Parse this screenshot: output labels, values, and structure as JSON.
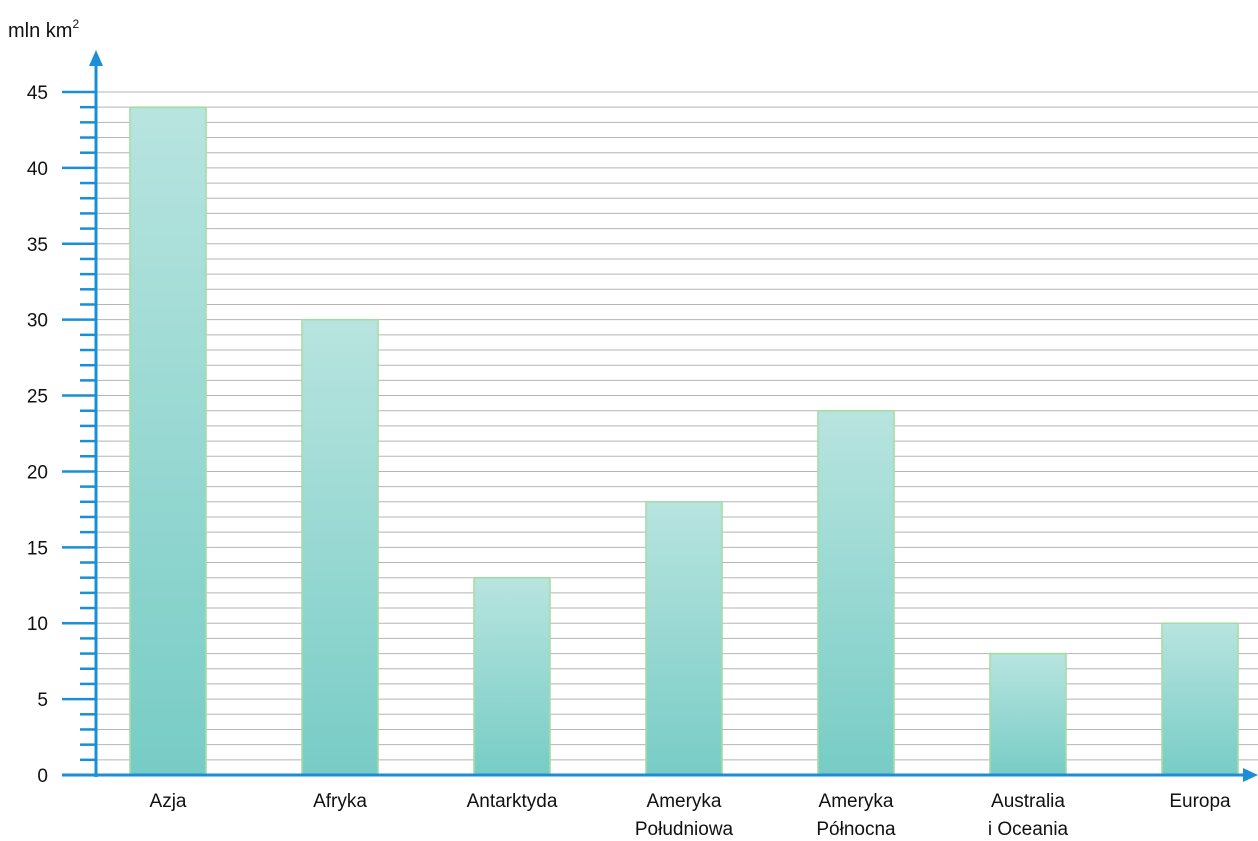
{
  "chart_data": {
    "type": "bar",
    "categories": [
      [
        "Azja"
      ],
      [
        "Afryka"
      ],
      [
        "Antarktyda"
      ],
      [
        "Ameryka",
        "Południowa"
      ],
      [
        "Ameryka",
        "Północna"
      ],
      [
        "Australia",
        "i Oceania"
      ],
      [
        "Europa"
      ]
    ],
    "values": [
      44,
      30,
      13,
      18,
      24,
      8,
      10
    ],
    "ylabel": "mln km",
    "ylabel_superscript": "2",
    "ylim": [
      0,
      45
    ],
    "y_ticks": [
      "0",
      "5",
      "10",
      "15",
      "20",
      "25",
      "30",
      "35",
      "40",
      "45"
    ],
    "grid": true,
    "colors": {
      "axis": "#1a8fd6",
      "grid": "#b5b5b5",
      "bar_top": "#b8e4df",
      "bar_bottom": "#78ccc6",
      "bar_edge": "#a4dca0"
    }
  }
}
